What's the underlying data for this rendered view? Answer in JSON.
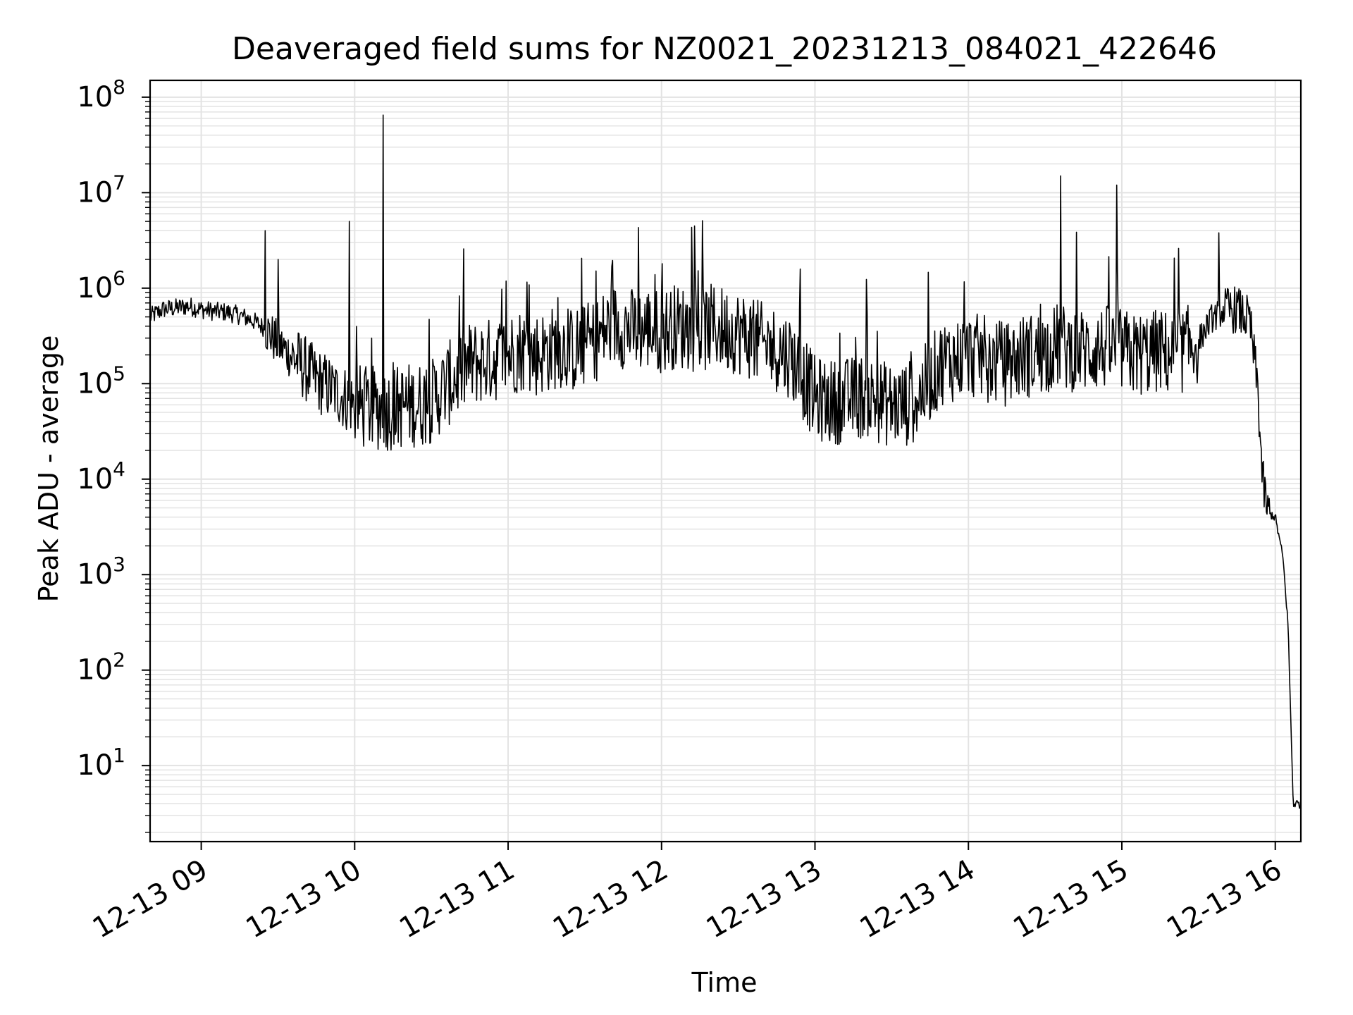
{
  "chart_data": {
    "type": "line",
    "title": "Deaveraged field sums for NZ0021_20231213_084021_422646",
    "xlabel": "Time",
    "ylabel": "Peak ADU - average",
    "yscale": "log",
    "ylim": [
      1.6,
      150000000
    ],
    "xlim": [
      "12-13 08:40",
      "12-13 16:10"
    ],
    "x_ticks": [
      "12-13 09",
      "12-13 10",
      "12-13 11",
      "12-13 12",
      "12-13 13",
      "12-13 14",
      "12-13 15",
      "12-13 16"
    ],
    "y_tick_labels": [
      {
        "base": "10",
        "exp": "1",
        "value": 10
      },
      {
        "base": "10",
        "exp": "2",
        "value": 100
      },
      {
        "base": "10",
        "exp": "3",
        "value": 1000
      },
      {
        "base": "10",
        "exp": "4",
        "value": 10000
      },
      {
        "base": "10",
        "exp": "5",
        "value": 100000
      },
      {
        "base": "10",
        "exp": "6",
        "value": 1000000
      },
      {
        "base": "10",
        "exp": "7",
        "value": 10000000
      },
      {
        "base": "10",
        "exp": "8",
        "value": 100000000
      }
    ],
    "grid": true,
    "colors": {
      "line": "#000000",
      "grid": "#e3e3e3"
    },
    "series": [
      {
        "x": [
          "12-13 08:40",
          "12-13 08:45",
          "12-13 08:50",
          "12-13 08:55",
          "12-13 09:00",
          "12-13 09:05",
          "12-13 09:10",
          "12-13 09:15",
          "12-13 09:20",
          "12-13 09:25",
          "12-13 09:30",
          "12-13 09:35",
          "12-13 09:40",
          "12-13 09:45",
          "12-13 09:50",
          "12-13 09:55",
          "12-13 10:00",
          "12-13 10:05",
          "12-13 10:10",
          "12-13 10:15",
          "12-13 10:20",
          "12-13 10:25",
          "12-13 10:30",
          "12-13 10:35",
          "12-13 10:40",
          "12-13 10:45",
          "12-13 10:50",
          "12-13 10:55",
          "12-13 11:00",
          "12-13 11:05",
          "12-13 11:10",
          "12-13 11:15",
          "12-13 11:20",
          "12-13 11:25",
          "12-13 11:30",
          "12-13 11:35",
          "12-13 11:40",
          "12-13 11:45",
          "12-13 11:50",
          "12-13 11:55",
          "12-13 12:00",
          "12-13 12:05",
          "12-13 12:10",
          "12-13 12:15",
          "12-13 12:20",
          "12-13 12:25",
          "12-13 12:30",
          "12-13 12:35",
          "12-13 12:40",
          "12-13 12:45",
          "12-13 12:50",
          "12-13 12:55",
          "12-13 13:00",
          "12-13 13:05",
          "12-13 13:10",
          "12-13 13:15",
          "12-13 13:20",
          "12-13 13:25",
          "12-13 13:30",
          "12-13 13:35",
          "12-13 13:40",
          "12-13 13:45",
          "12-13 13:50",
          "12-13 13:55",
          "12-13 14:00",
          "12-13 14:05",
          "12-13 14:10",
          "12-13 14:15",
          "12-13 14:20",
          "12-13 14:25",
          "12-13 14:30",
          "12-13 14:35",
          "12-13 14:40",
          "12-13 14:45",
          "12-13 14:50",
          "12-13 14:55",
          "12-13 15:00",
          "12-13 15:05",
          "12-13 15:10",
          "12-13 15:15",
          "12-13 15:20",
          "12-13 15:25",
          "12-13 15:30",
          "12-13 15:35",
          "12-13 15:40",
          "12-13 15:45",
          "12-13 15:50",
          "12-13 15:53",
          "12-13 15:55",
          "12-13 15:57",
          "12-13 16:00",
          "12-13 16:03",
          "12-13 16:05",
          "12-13 16:07",
          "12-13 16:10"
        ],
        "y": [
          500000,
          600000,
          620000,
          650000,
          600000,
          570000,
          560000,
          520000,
          460000,
          380000,
          260000,
          200000,
          150000,
          110000,
          90000,
          75000,
          60000,
          55000,
          55000,
          55000,
          60000,
          60000,
          65000,
          90000,
          120000,
          160000,
          170000,
          180000,
          200000,
          230000,
          200000,
          220000,
          250000,
          220000,
          250000,
          300000,
          400000,
          400000,
          350000,
          380000,
          350000,
          400000,
          380000,
          350000,
          400000,
          370000,
          350000,
          300000,
          250000,
          230000,
          200000,
          120000,
          70000,
          65000,
          65000,
          70000,
          75000,
          65000,
          60000,
          60000,
          70000,
          110000,
          170000,
          180000,
          200000,
          190000,
          170000,
          160000,
          190000,
          200000,
          220000,
          250000,
          230000,
          220000,
          230000,
          240000,
          220000,
          200000,
          210000,
          220000,
          200000,
          230000,
          280000,
          480000,
          580000,
          600000,
          450000,
          100000,
          10000,
          4500,
          4000,
          1500,
          300,
          4,
          4
        ],
        "spikes": [
          {
            "x": "12-13 09:25",
            "y": 4000000
          },
          {
            "x": "12-13 09:30",
            "y": 2000000
          },
          {
            "x": "12-13 09:58",
            "y": 5000000
          },
          {
            "x": "12-13 10:11",
            "y": 65000000
          },
          {
            "x": "12-13 14:36",
            "y": 15000000
          },
          {
            "x": "12-13 14:58",
            "y": 12000000
          },
          {
            "x": "12-13 15:38",
            "y": 3800000
          }
        ]
      }
    ]
  }
}
